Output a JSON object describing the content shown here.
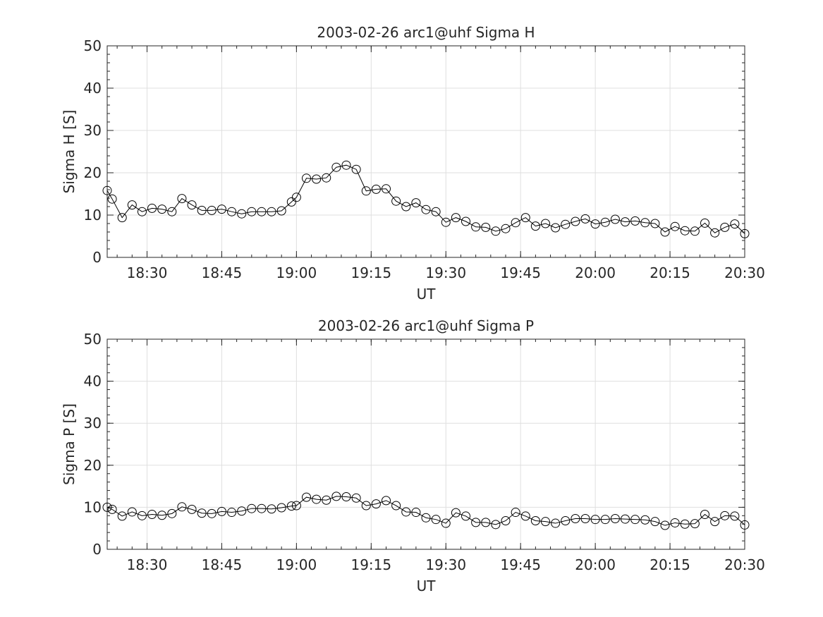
{
  "chart_data": [
    {
      "type": "line",
      "title": "2003-02-26  arc1@uhf Sigma H",
      "xlabel": "UT",
      "ylabel": "Sigma H [S]",
      "xlim": [
        "18:22",
        "20:30"
      ],
      "ylim": [
        0,
        50
      ],
      "xticks": [
        "18:30",
        "18:45",
        "19:00",
        "19:15",
        "19:30",
        "19:45",
        "20:00",
        "20:15",
        "20:30"
      ],
      "yticks": [
        "0",
        "10",
        "20",
        "30",
        "40",
        "50"
      ],
      "grid": true,
      "marker": "open-circle",
      "line_color": "#000000",
      "series": [
        {
          "x": [
            "18:22",
            "18:23",
            "18:25",
            "18:27",
            "18:29",
            "18:31",
            "18:33",
            "18:35",
            "18:37",
            "18:39",
            "18:41",
            "18:43",
            "18:45",
            "18:47",
            "18:49",
            "18:51",
            "18:53",
            "18:55",
            "18:57",
            "18:59",
            "19:00",
            "19:02",
            "19:04",
            "19:06",
            "19:08",
            "19:10",
            "19:12",
            "19:14",
            "19:16",
            "19:18",
            "19:20",
            "19:22",
            "19:24",
            "19:26",
            "19:28",
            "19:30",
            "19:32",
            "19:34",
            "19:36",
            "19:38",
            "19:40",
            "19:42",
            "19:44",
            "19:46",
            "19:48",
            "19:50",
            "19:52",
            "19:54",
            "19:56",
            "19:58",
            "20:00",
            "20:02",
            "20:04",
            "20:06",
            "20:08",
            "20:10",
            "20:12",
            "20:14",
            "20:16",
            "20:18",
            "20:20",
            "20:22",
            "20:24",
            "20:26",
            "20:28",
            "20:30"
          ],
          "y": [
            15.8,
            13.8,
            9.4,
            12.4,
            10.8,
            11.6,
            11.4,
            10.8,
            13.9,
            12.4,
            11.1,
            11.1,
            11.4,
            10.8,
            10.3,
            10.8,
            10.8,
            10.8,
            11.0,
            13.1,
            14.2,
            18.7,
            18.5,
            18.8,
            21.3,
            21.8,
            20.8,
            15.7,
            16.1,
            16.2,
            13.3,
            12.0,
            12.9,
            11.3,
            10.8,
            8.3,
            9.4,
            8.5,
            7.2,
            7.1,
            6.2,
            6.8,
            8.2,
            9.4,
            7.4,
            8.0,
            7.0,
            7.8,
            8.5,
            9.1,
            7.9,
            8.3,
            9.0,
            8.4,
            8.6,
            8.2,
            8.0,
            6.0,
            7.3,
            6.3,
            6.2,
            8.1,
            5.8,
            7.1,
            7.9,
            5.6
          ]
        }
      ]
    },
    {
      "type": "line",
      "title": "2003-02-26  arc1@uhf Sigma P",
      "xlabel": "UT",
      "ylabel": "Sigma P [S]",
      "xlim": [
        "18:22",
        "20:30"
      ],
      "ylim": [
        0,
        50
      ],
      "xticks": [
        "18:30",
        "18:45",
        "19:00",
        "19:15",
        "19:30",
        "19:45",
        "20:00",
        "20:15",
        "20:30"
      ],
      "yticks": [
        "0",
        "10",
        "20",
        "30",
        "40",
        "50"
      ],
      "grid": true,
      "marker": "open-circle",
      "line_color": "#000000",
      "series": [
        {
          "x": [
            "18:22",
            "18:23",
            "18:25",
            "18:27",
            "18:29",
            "18:31",
            "18:33",
            "18:35",
            "18:37",
            "18:39",
            "18:41",
            "18:43",
            "18:45",
            "18:47",
            "18:49",
            "18:51",
            "18:53",
            "18:55",
            "18:57",
            "18:59",
            "19:00",
            "19:02",
            "19:04",
            "19:06",
            "19:08",
            "19:10",
            "19:12",
            "19:14",
            "19:16",
            "19:18",
            "19:20",
            "19:22",
            "19:24",
            "19:26",
            "19:28",
            "19:30",
            "19:32",
            "19:34",
            "19:36",
            "19:38",
            "19:40",
            "19:42",
            "19:44",
            "19:46",
            "19:48",
            "19:50",
            "19:52",
            "19:54",
            "19:56",
            "19:58",
            "20:00",
            "20:02",
            "20:04",
            "20:06",
            "20:08",
            "20:10",
            "20:12",
            "20:14",
            "20:16",
            "20:18",
            "20:20",
            "20:22",
            "20:24",
            "20:26",
            "20:28",
            "20:30"
          ],
          "y": [
            10.0,
            9.5,
            7.9,
            8.9,
            8.0,
            8.3,
            8.1,
            8.5,
            10.1,
            9.5,
            8.6,
            8.5,
            9.0,
            8.8,
            9.1,
            9.7,
            9.7,
            9.6,
            9.9,
            10.3,
            10.4,
            12.4,
            11.9,
            11.7,
            12.6,
            12.5,
            12.2,
            10.4,
            10.8,
            11.6,
            10.4,
            8.9,
            8.8,
            7.5,
            7.1,
            6.2,
            8.7,
            7.9,
            6.4,
            6.4,
            5.9,
            6.8,
            8.8,
            7.9,
            6.8,
            6.6,
            6.2,
            6.8,
            7.3,
            7.3,
            7.1,
            7.1,
            7.3,
            7.2,
            7.1,
            7.0,
            6.6,
            5.7,
            6.3,
            6.0,
            6.1,
            8.3,
            6.6,
            8.0,
            7.9,
            5.8
          ]
        }
      ]
    }
  ]
}
